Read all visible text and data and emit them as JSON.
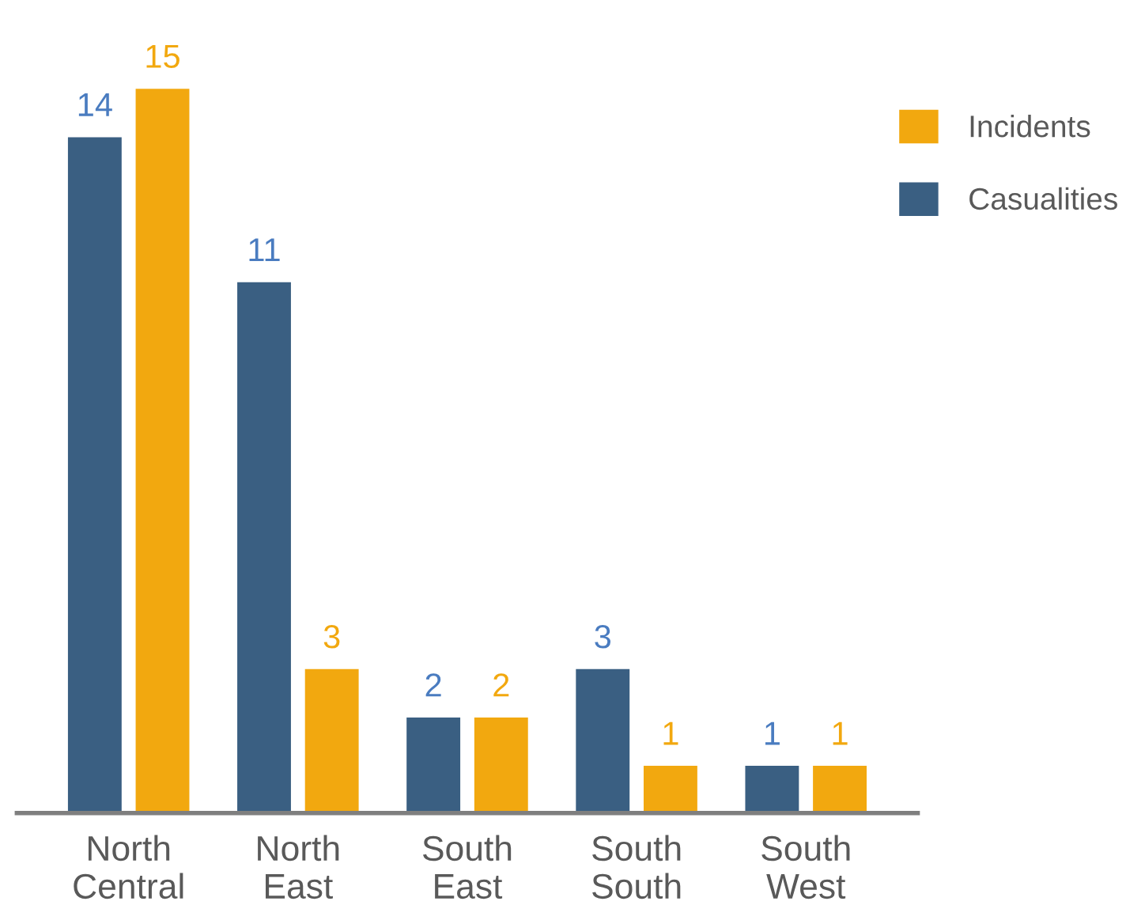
{
  "chart_data": {
    "type": "bar",
    "categories": [
      "North\nCentral",
      "North\nEast",
      "South\nEast",
      "South\nSouth",
      "South\nWest"
    ],
    "series": [
      {
        "name": "Casualities",
        "color": "#3a5f82",
        "values": [
          14,
          11,
          2,
          3,
          1
        ]
      },
      {
        "name": "Incidents",
        "color": "#f2a80f",
        "values": [
          15,
          3,
          2,
          1,
          1
        ]
      }
    ],
    "data_labels": true,
    "legend": "top right",
    "grid": false
  }
}
